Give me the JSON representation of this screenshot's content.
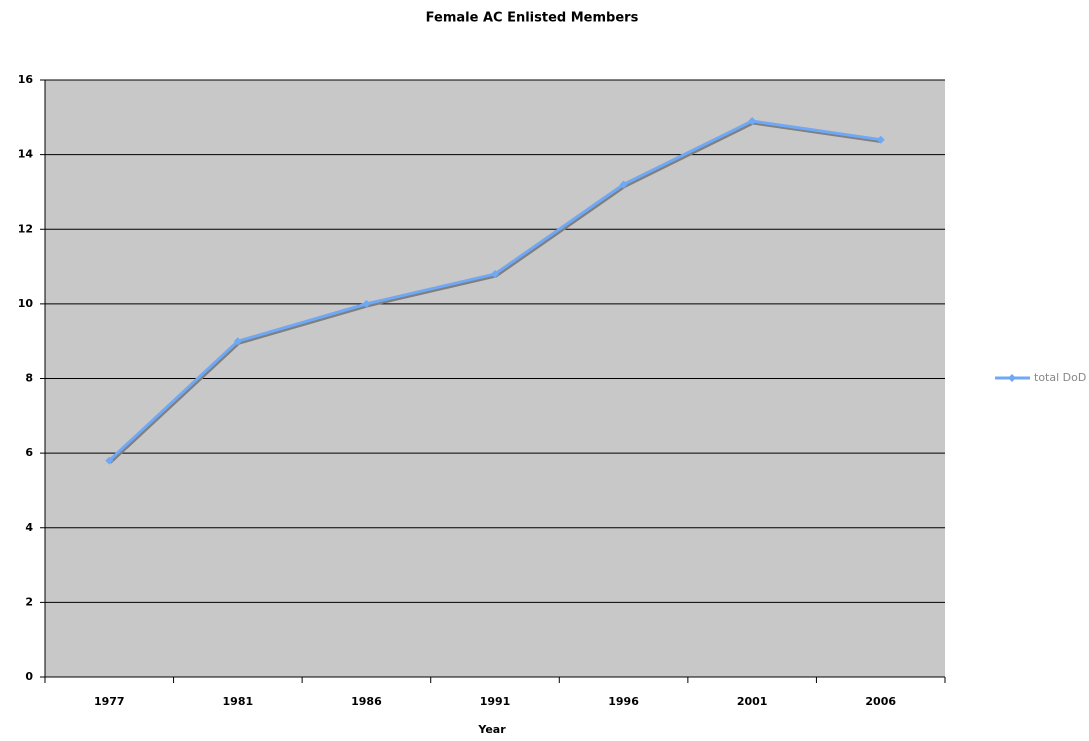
{
  "chart_data": {
    "type": "line",
    "title": "Female AC Enlisted Members",
    "x_label": "Year",
    "categories": [
      "1977",
      "1981",
      "1986",
      "1991",
      "1996",
      "2001",
      "2006"
    ],
    "series": [
      {
        "name": "total DoD",
        "color": "#6fa8f5",
        "values": [
          5.8,
          9.0,
          10.0,
          10.8,
          13.2,
          14.9,
          14.4
        ]
      }
    ],
    "ylim": [
      0,
      16
    ],
    "yticks": [
      0,
      2,
      4,
      6,
      8,
      10,
      12,
      14,
      16
    ],
    "grid": true,
    "legend": "right"
  }
}
